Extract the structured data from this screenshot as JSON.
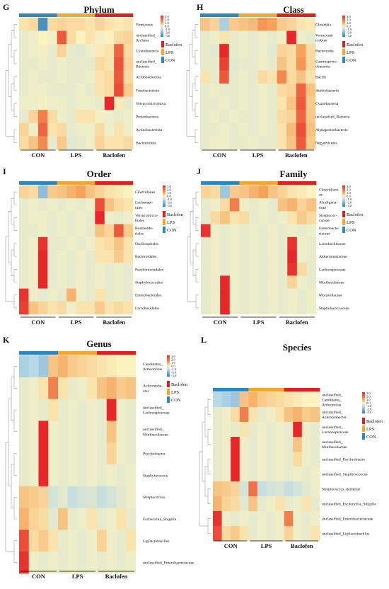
{
  "colors": {
    "con": "#2e86c1",
    "lps": "#f0a830",
    "baclofen": "#e02020"
  },
  "groups": [
    "CON",
    "LPS",
    "Baclofen"
  ],
  "legend_groups": [
    "Baclofen",
    "LPS",
    "CON"
  ],
  "scale_ticks": [
    "3.0",
    "2.0",
    "1.0",
    "0.0",
    "-1.0",
    "-2.0",
    "-3.0"
  ],
  "chart_data": [
    {
      "type": "heatmap",
      "letter": "G",
      "title": "Phylum",
      "rows": [
        "Firmicutes",
        "unclassified_\nArchaea",
        "Cyanobacteria",
        "unclassified_\nBacteria",
        "Acidobacteriota",
        "Fusobacteriota",
        "Verrucomicrobiota",
        "Proteobacteria",
        "Actinobacteriota",
        "Bacteroidota"
      ],
      "values": [
        [
          0.2,
          0.3,
          -2.6,
          0.3,
          0.4,
          0.3,
          0.3,
          0.2,
          0.4,
          0.2,
          0.1,
          0.2
        ],
        [
          -0.3,
          -0.2,
          0.0,
          -0.1,
          2.2,
          0.3,
          0.0,
          0.2,
          -0.1,
          0.0,
          0.3,
          0.4
        ],
        [
          -0.3,
          -0.2,
          -0.1,
          -0.3,
          0.4,
          -0.3,
          -0.4,
          -0.2,
          0.1,
          0.2,
          2.0,
          0.3
        ],
        [
          -0.3,
          -0.3,
          -0.2,
          -0.3,
          -0.2,
          -0.3,
          -0.3,
          -0.3,
          0.3,
          0.2,
          2.3,
          0.4
        ],
        [
          -0.3,
          -0.2,
          -0.3,
          -0.3,
          -0.2,
          -0.3,
          -0.3,
          -0.2,
          0.2,
          0.3,
          2.2,
          0.3
        ],
        [
          -0.3,
          -0.2,
          -0.2,
          -0.3,
          -0.3,
          -0.3,
          -0.2,
          -0.3,
          0.2,
          0.3,
          2.4,
          0.5
        ],
        [
          -0.2,
          -0.2,
          -0.1,
          -0.2,
          -0.2,
          -0.3,
          -0.2,
          -0.2,
          -0.3,
          3.0,
          0.1,
          -0.3
        ],
        [
          -0.3,
          0.4,
          1.6,
          0.3,
          -0.2,
          -0.3,
          0.2,
          0.2,
          -0.1,
          -0.2,
          -0.3,
          -0.2
        ],
        [
          0.4,
          -0.2,
          2.0,
          0.2,
          0.3,
          -0.3,
          -0.2,
          -0.2,
          0.3,
          -0.2,
          0.2,
          -0.2
        ],
        [
          0.3,
          0.6,
          1.4,
          -0.3,
          0.5,
          -0.4,
          -0.3,
          -0.2,
          0.4,
          0.2,
          0.2,
          0.3
        ]
      ]
    },
    {
      "type": "heatmap",
      "letter": "H",
      "title": "Class",
      "rows": [
        "Clostridia",
        "Verrucomi-\ncrobiae",
        "Bacteroidia",
        "Gammaproto-\nobacteria",
        "Bacilli",
        "Actinobacteria",
        "Cyanobacteria",
        "unclassified_Bacteria",
        "Alphaproteobacteria",
        "Negativicutes"
      ],
      "values": [
        [
          0.6,
          0.4,
          -1.2,
          0.5,
          0.6,
          0.7,
          1.2,
          1.0,
          0.5,
          0.4,
          0.2,
          0.1
        ],
        [
          -0.3,
          -0.2,
          0.2,
          -0.3,
          -0.2,
          -0.3,
          -0.2,
          -0.3,
          -0.2,
          3.0,
          -0.2,
          -0.3
        ],
        [
          -0.3,
          -0.4,
          3.0,
          -0.3,
          -0.2,
          -0.3,
          -0.2,
          -0.4,
          0.4,
          0.3,
          1.0,
          0.3
        ],
        [
          -0.3,
          -0.3,
          2.6,
          -0.4,
          -0.3,
          -0.3,
          -0.2,
          -0.3,
          0.6,
          0.3,
          1.2,
          0.3
        ],
        [
          0.2,
          -0.3,
          2.2,
          -0.3,
          -0.2,
          -0.3,
          0.3,
          0.2,
          1.4,
          0.3,
          0.6,
          0.2
        ],
        [
          -0.3,
          -0.2,
          -0.3,
          -0.3,
          -0.2,
          -0.3,
          -0.2,
          -0.3,
          0.3,
          0.4,
          2.0,
          0.6
        ],
        [
          -0.3,
          -0.3,
          -0.2,
          -0.3,
          -0.2,
          -0.3,
          -0.2,
          -0.3,
          0.2,
          0.6,
          2.2,
          0.5
        ],
        [
          -0.3,
          -0.2,
          -0.3,
          -0.2,
          -0.3,
          -0.3,
          -0.2,
          -0.3,
          0.3,
          0.4,
          2.0,
          0.5
        ],
        [
          -0.3,
          -0.3,
          -0.2,
          -0.3,
          -0.2,
          -0.3,
          -0.2,
          -0.3,
          0.2,
          0.7,
          2.4,
          0.6
        ],
        [
          -0.3,
          -0.2,
          -0.2,
          -0.3,
          -0.3,
          -0.2,
          -0.3,
          -0.3,
          0.2,
          0.6,
          2.2,
          0.5
        ]
      ]
    },
    {
      "type": "heatmap",
      "letter": "I",
      "title": "Order",
      "rows": [
        "Clostridiales",
        "Lachnospi-\nrales",
        "Verrucomicro-\nbiales",
        "Burkholde-\nriales",
        "Oscillospirales",
        "Bacteroidales",
        "Pseudomonadales",
        "Staphylococcales",
        "Enterobacterales",
        "Lactobacillales"
      ],
      "values": [
        [
          0.4,
          0.3,
          -1.6,
          0.5,
          0.6,
          0.8,
          1.0,
          0.6,
          0.4,
          0.2,
          0.1,
          0.0
        ],
        [
          -0.3,
          -0.2,
          -0.3,
          -0.2,
          -0.3,
          -0.2,
          -0.3,
          -0.2,
          2.4,
          0.6,
          0.3,
          0.2
        ],
        [
          -0.3,
          -0.2,
          -0.2,
          -0.3,
          -0.2,
          -0.3,
          -0.2,
          -0.3,
          3.0,
          -0.2,
          -0.3,
          -0.2
        ],
        [
          -0.3,
          -0.3,
          -0.2,
          -0.3,
          -0.2,
          -0.3,
          -0.2,
          -0.3,
          0.6,
          0.4,
          2.2,
          0.5
        ],
        [
          -0.3,
          -0.2,
          2.8,
          -0.3,
          -0.3,
          -0.2,
          -0.3,
          -0.2,
          0.2,
          0.3,
          0.6,
          0.2
        ],
        [
          -0.3,
          -0.2,
          3.0,
          -0.3,
          -0.2,
          -0.3,
          -0.2,
          -0.3,
          0.2,
          0.2,
          0.5,
          0.2
        ],
        [
          -0.3,
          -0.2,
          3.0,
          -0.3,
          -0.2,
          -0.3,
          -0.2,
          -0.3,
          -0.2,
          -0.3,
          -0.2,
          -0.3
        ],
        [
          -0.3,
          -0.2,
          3.0,
          -0.3,
          -0.2,
          -0.3,
          -0.2,
          -0.3,
          -0.2,
          -0.3,
          -0.2,
          -0.3
        ],
        [
          2.8,
          -0.2,
          -0.3,
          -0.2,
          -0.3,
          0.8,
          -0.2,
          -0.3,
          0.2,
          -0.3,
          -0.2,
          -0.3
        ],
        [
          2.6,
          0.6,
          0.4,
          0.2,
          0.3,
          -0.2,
          0.2,
          0.2,
          0.5,
          0.2,
          0.3,
          0.2
        ]
      ]
    },
    {
      "type": "heatmap",
      "letter": "J",
      "title": "Family",
      "rows": [
        "Clostridiace-\nae",
        "Alcaligena-\nceae",
        "Streptococ-\ncaceae",
        "Enterobacte-\nriaceae",
        "Lactobacillaceae",
        "Akkermansiaceae",
        "Lachnospiraceae",
        "Muribaculaceae",
        "Moraxellaceae",
        "Staphylococcaceae"
      ],
      "values": [
        [
          0.4,
          0.3,
          -1.4,
          0.5,
          0.6,
          0.8,
          1.0,
          0.6,
          0.4,
          0.2,
          0.1,
          0.0
        ],
        [
          -0.3,
          -0.2,
          0.3,
          1.6,
          -0.2,
          -0.3,
          -0.2,
          -0.3,
          0.6,
          0.8,
          0.4,
          0.6
        ],
        [
          -0.3,
          0.3,
          0.6,
          0.2,
          0.3,
          -0.3,
          -0.2,
          -0.3,
          -0.2,
          0.2,
          0.5,
          0.3
        ],
        [
          2.8,
          -0.2,
          -0.3,
          -0.2,
          -0.3,
          -0.2,
          -0.3,
          -0.2,
          -0.3,
          -0.2,
          -0.3,
          -0.2
        ],
        [
          -0.3,
          -0.2,
          -0.3,
          -0.2,
          -0.3,
          -0.2,
          -0.3,
          -0.2,
          -0.3,
          2.8,
          -0.2,
          -0.3
        ],
        [
          -0.3,
          -0.2,
          -0.3,
          -0.2,
          -0.3,
          -0.2,
          -0.3,
          -0.2,
          -0.3,
          3.0,
          -0.2,
          -0.3
        ],
        [
          -0.3,
          -0.2,
          -0.3,
          -0.2,
          -0.3,
          -0.2,
          -0.3,
          -0.2,
          -0.3,
          2.8,
          0.3,
          -0.3
        ],
        [
          -0.3,
          -0.2,
          3.0,
          -0.2,
          -0.3,
          -0.2,
          -0.3,
          -0.2,
          -0.3,
          0.4,
          -0.2,
          -0.3
        ],
        [
          -0.3,
          -0.2,
          3.0,
          -0.2,
          -0.3,
          -0.2,
          -0.3,
          -0.2,
          -0.3,
          -0.2,
          -0.3,
          -0.2
        ],
        [
          -0.3,
          -0.2,
          3.0,
          -0.2,
          -0.3,
          -0.2,
          -0.3,
          -0.2,
          -0.3,
          -0.2,
          -0.3,
          -0.2
        ]
      ]
    },
    {
      "type": "heatmap",
      "letter": "K",
      "title": "Genus",
      "rows": [
        "Candidatus_\nArthromitus",
        "Achromoba-\ncter",
        "unclassified_\nLachnospiraceae",
        "unclassified_\nMuribaculaceae",
        "Psychrobacter",
        "Staphylococcus",
        "Streptococcus",
        "Escherichia_Shigella",
        "Ligilactobacillus",
        "unclassified_Enterobacteriaceae"
      ],
      "values": [
        [
          -1.2,
          -1.0,
          -1.4,
          0.6,
          0.8,
          0.5,
          0.4,
          0.3,
          0.2,
          0.1,
          0.0,
          0.0
        ],
        [
          -0.3,
          -0.2,
          0.2,
          1.6,
          0.2,
          -0.3,
          -0.2,
          0.2,
          0.6,
          0.8,
          0.5,
          0.6
        ],
        [
          -0.3,
          -0.2,
          -0.3,
          0.2,
          -0.3,
          -0.2,
          -0.3,
          -0.2,
          -0.3,
          3.0,
          -0.2,
          -0.3
        ],
        [
          -0.3,
          -0.2,
          3.0,
          -0.2,
          -0.3,
          -0.2,
          -0.3,
          -0.2,
          -0.3,
          0.6,
          -0.2,
          -0.3
        ],
        [
          -0.3,
          -0.2,
          3.0,
          -0.2,
          -0.3,
          -0.2,
          -0.3,
          -0.2,
          -0.3,
          0.4,
          -0.2,
          -0.3
        ],
        [
          -0.3,
          -0.2,
          3.0,
          -0.2,
          -0.3,
          -0.2,
          -0.3,
          -0.2,
          -0.3,
          -0.2,
          -0.3,
          -0.2
        ],
        [
          0.6,
          0.5,
          0.4,
          -0.6,
          -0.4,
          -0.8,
          -0.6,
          -0.5,
          -0.8,
          -0.6,
          -0.4,
          -0.2
        ],
        [
          0.8,
          0.4,
          0.3,
          -0.4,
          0.6,
          -0.3,
          -0.2,
          0.2,
          -0.3,
          -0.2,
          0.2,
          -0.3
        ],
        [
          2.4,
          0.3,
          0.5,
          0.2,
          -0.3,
          -0.2,
          -0.3,
          -0.2,
          0.4,
          -0.2,
          -0.3,
          0.2
        ],
        [
          2.8,
          -0.2,
          -0.3,
          -0.2,
          -0.3,
          -0.2,
          -0.3,
          -0.2,
          -0.3,
          -0.2,
          -0.3,
          -0.2
        ]
      ]
    },
    {
      "type": "heatmap",
      "letter": "L",
      "title": "Species",
      "rows": [
        "unclassified_\nCandidatus_\nArthromitus",
        "unclassified_\nAchromobacter",
        "unclassified_\nLachnospiraceae",
        "unclassified_\nMuribaculaceae",
        "unclassified_Psychrobacter",
        "unclassified_Staphylococcus",
        "Streptococcus_danieliae",
        "unclassified_Escherichia_Shigella",
        "unclassified_Enterobacteriaceae",
        "unclassified_Ligilactobacillus"
      ],
      "values": [
        [
          -1.0,
          -1.2,
          -1.4,
          0.6,
          0.8,
          0.5,
          0.4,
          0.3,
          0.2,
          0.1,
          0.0,
          0.0
        ],
        [
          -0.3,
          -0.2,
          0.3,
          1.6,
          0.2,
          -0.3,
          -0.2,
          0.2,
          0.6,
          0.8,
          0.5,
          0.6
        ],
        [
          -0.3,
          -0.2,
          -0.3,
          0.2,
          -0.3,
          -0.2,
          -0.3,
          -0.2,
          -0.3,
          3.0,
          -0.2,
          -0.3
        ],
        [
          -0.3,
          -0.2,
          3.0,
          -0.2,
          -0.3,
          -0.2,
          -0.3,
          -0.2,
          -0.3,
          0.6,
          -0.2,
          -0.3
        ],
        [
          -0.3,
          -0.2,
          3.0,
          -0.2,
          -0.3,
          -0.2,
          -0.3,
          -0.2,
          -0.3,
          0.3,
          -0.2,
          -0.3
        ],
        [
          -0.3,
          -0.2,
          3.0,
          -0.2,
          -0.3,
          -0.2,
          -0.3,
          -0.2,
          -0.3,
          -0.2,
          -0.3,
          -0.2
        ],
        [
          0.6,
          0.5,
          0.4,
          -0.6,
          1.8,
          -0.8,
          -0.6,
          -0.5,
          -0.8,
          -0.6,
          -0.4,
          -0.2
        ],
        [
          0.8,
          0.4,
          0.3,
          -0.4,
          0.6,
          -0.3,
          -0.2,
          0.2,
          -0.3,
          -0.2,
          0.2,
          -0.3
        ],
        [
          2.8,
          -0.2,
          -0.3,
          -0.2,
          -0.3,
          -0.2,
          -0.3,
          -0.2,
          1.6,
          -0.2,
          -0.3,
          -0.2
        ],
        [
          2.4,
          0.3,
          0.5,
          0.2,
          -0.3,
          -0.2,
          -0.3,
          -0.2,
          0.4,
          -0.2,
          -0.3,
          0.2
        ]
      ]
    }
  ]
}
